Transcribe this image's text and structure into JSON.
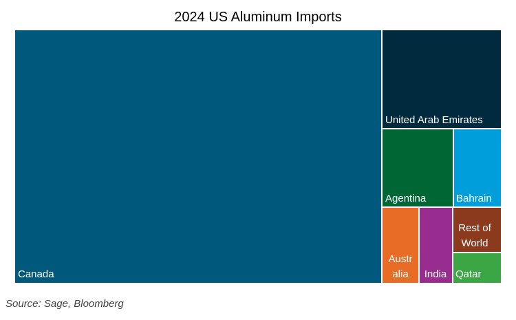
{
  "chart_data": {
    "type": "treemap",
    "title": "2024 US Aluminum Imports",
    "items": [
      {
        "name": "Canada",
        "label_lines": [
          "Canada"
        ],
        "color": "#00587c"
      },
      {
        "name": "United Arab Emirates",
        "label_lines": [
          "United Arab Emirates"
        ],
        "color": "#002b3f"
      },
      {
        "name": "Agentina",
        "label_lines": [
          "Agentina"
        ],
        "color": "#006633"
      },
      {
        "name": "Bahrain",
        "label_lines": [
          "Bahrain"
        ],
        "color": "#009fdb"
      },
      {
        "name": "Australia",
        "label_lines": [
          "Austr",
          "alia"
        ],
        "color": "#e86c25"
      },
      {
        "name": "India",
        "label_lines": [
          "India"
        ],
        "color": "#982d8f"
      },
      {
        "name": "Rest of World",
        "label_lines": [
          "Rest of",
          "World"
        ],
        "color": "#8b3a1e"
      },
      {
        "name": "Qatar",
        "label_lines": [
          "Qatar"
        ],
        "color": "#3ca544"
      }
    ]
  },
  "source": "Source: Sage, Bloomberg"
}
